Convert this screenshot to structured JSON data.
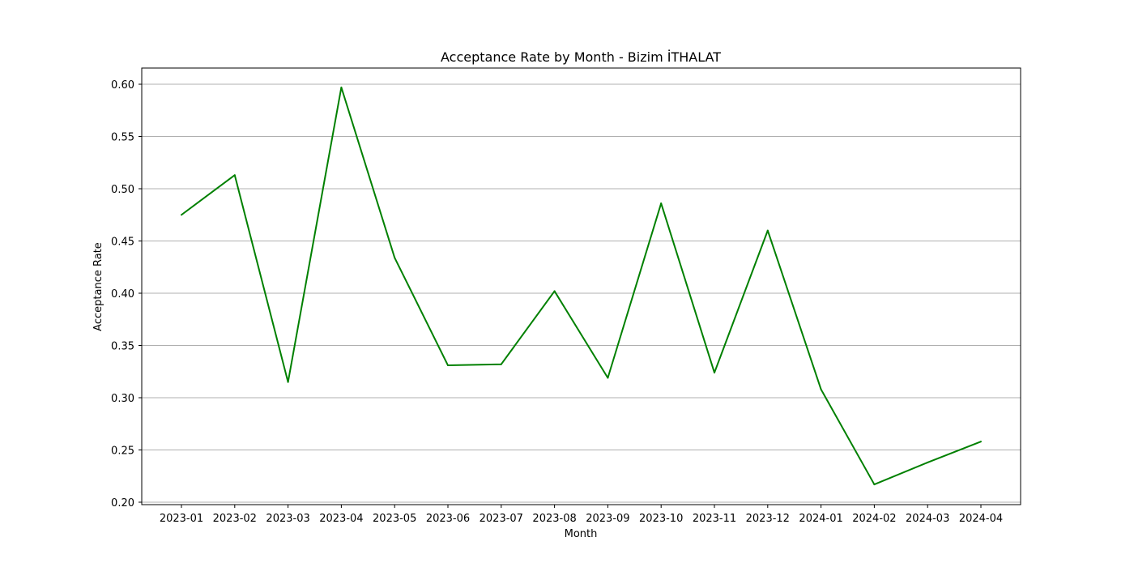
{
  "chart_data": {
    "type": "line",
    "title": "Acceptance Rate by Month - Bizim İTHALAT",
    "xlabel": "Month",
    "ylabel": "Acceptance Rate",
    "categories": [
      "2023-01",
      "2023-02",
      "2023-03",
      "2023-04",
      "2023-05",
      "2023-06",
      "2023-07",
      "2023-08",
      "2023-09",
      "2023-10",
      "2023-11",
      "2023-12",
      "2024-01",
      "2024-02",
      "2024-03",
      "2024-04"
    ],
    "series": [
      {
        "values": [
          0.475,
          0.513,
          0.315,
          0.597,
          0.434,
          0.331,
          0.332,
          0.402,
          0.319,
          0.486,
          0.324,
          0.46,
          0.308,
          0.217,
          0.238,
          0.258
        ],
        "color": "#008000"
      }
    ],
    "ylim": [
      0.2,
      0.6
    ],
    "yticks": [
      "0.20",
      "0.25",
      "0.30",
      "0.35",
      "0.40",
      "0.45",
      "0.50",
      "0.55",
      "0.60"
    ],
    "grid": "horizontal",
    "grid_color": "#b0b0b0",
    "legend": "none"
  }
}
